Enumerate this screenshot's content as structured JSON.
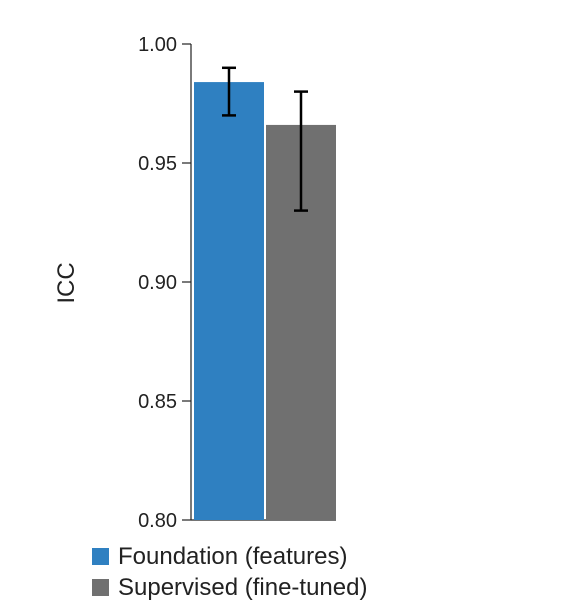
{
  "chart_data": {
    "type": "bar",
    "title": "",
    "xlabel": "",
    "ylabel": "ICC",
    "ylim": [
      0.8,
      1.0
    ],
    "yticks": [
      0.8,
      0.85,
      0.9,
      0.95,
      1.0
    ],
    "ytick_labels": [
      "0.80",
      "0.85",
      "0.90",
      "0.95",
      "1.00"
    ],
    "grid": false,
    "legend_position": "bottom-left",
    "series": [
      {
        "name": "Foundation (features)",
        "value": 0.984,
        "err_low": 0.97,
        "err_high": 0.99,
        "color": "#2f80c1"
      },
      {
        "name": "Supervised (fine-tuned)",
        "value": 0.966,
        "err_low": 0.93,
        "err_high": 0.98,
        "color": "#707070"
      }
    ]
  }
}
